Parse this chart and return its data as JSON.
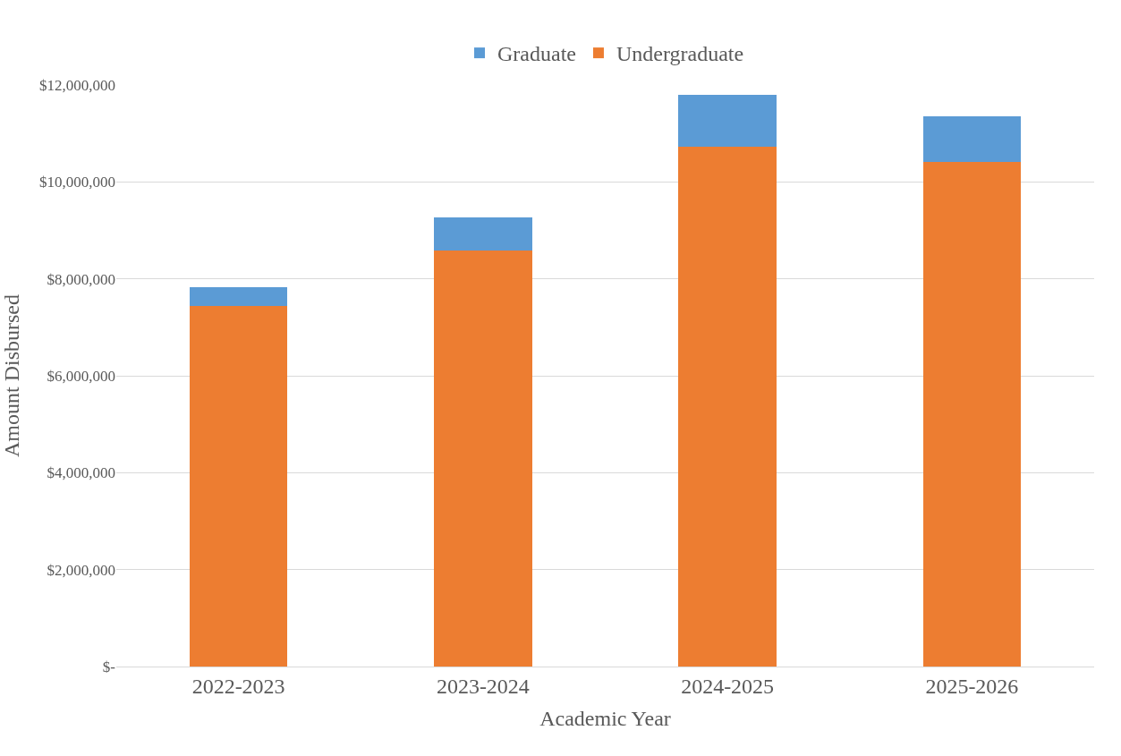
{
  "chart_data": {
    "type": "bar",
    "stacked": true,
    "xlabel": "Academic Year",
    "ylabel": "Amount Disbursed",
    "categories": [
      "2022-2023",
      "2023-2024",
      "2024-2025",
      "2025-2026"
    ],
    "series": [
      {
        "name": "Undergraduate",
        "color": "#ed7d31",
        "values": [
          7440000,
          8590000,
          10730000,
          10420000
        ]
      },
      {
        "name": "Graduate",
        "color": "#5b9bd5",
        "values": [
          390000,
          680000,
          1060000,
          940000
        ]
      }
    ],
    "ylim": [
      0,
      12000000
    ],
    "yticks": [
      {
        "value": 0,
        "label": "$-"
      },
      {
        "value": 2000000,
        "label": "$2,000,000"
      },
      {
        "value": 4000000,
        "label": "$4,000,000"
      },
      {
        "value": 6000000,
        "label": "$6,000,000"
      },
      {
        "value": 8000000,
        "label": "$8,000,000"
      },
      {
        "value": 10000000,
        "label": "$10,000,000"
      },
      {
        "value": 12000000,
        "label": "$12,000,000"
      }
    ],
    "grid": "y",
    "legend": "top"
  }
}
